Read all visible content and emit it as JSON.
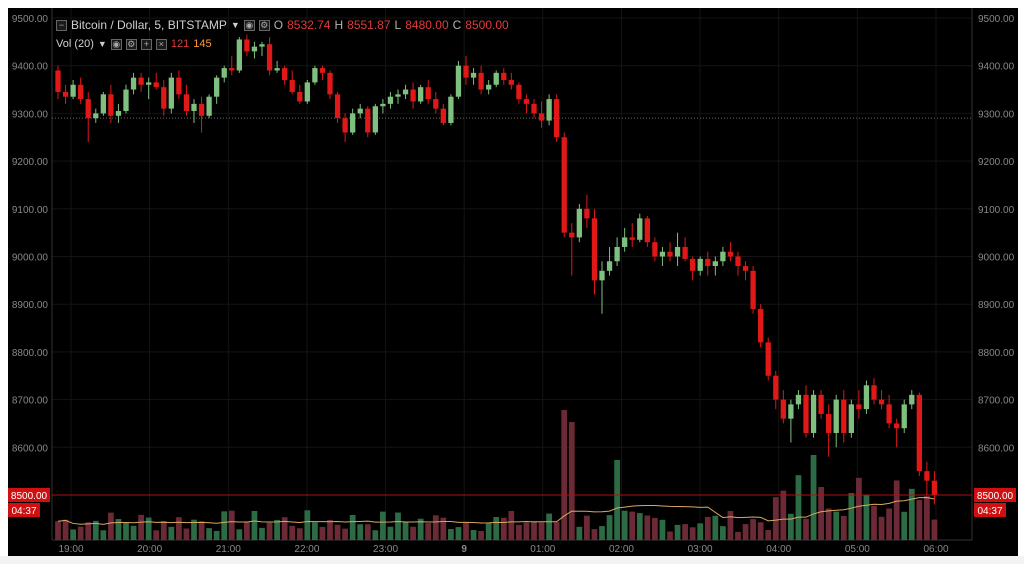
{
  "symbol": {
    "title": "Bitcoin / Dollar, 5, BITSTAMP",
    "open_label": "O",
    "open": "8532.74",
    "high_label": "H",
    "high": "8551.87",
    "low_label": "L",
    "low": "8480.00",
    "close_label": "C",
    "close": "8500.00"
  },
  "volume_legend": {
    "label": "Vol (20)",
    "value1": "121",
    "value2": "145"
  },
  "price_marker": {
    "price": "8500.00",
    "countdown": "04:37"
  },
  "colors": {
    "up": "#7fbf7f",
    "down": "#e01818",
    "vol_up": "#2d6b45",
    "vol_down": "#6b2a35",
    "ma": "#d9a860",
    "grid": "#141414",
    "axis_text": "#888888"
  },
  "chart_data": {
    "type": "candlestick",
    "title": "Bitcoin / Dollar, 5, BITSTAMP",
    "y_ticks": [
      9500,
      9400,
      9300,
      9200,
      9100,
      9000,
      8900,
      8800,
      8700,
      8600,
      8500
    ],
    "ylim": [
      8350,
      9500
    ],
    "x_ticks": [
      "19:00",
      "20:00",
      "21:00",
      "22:00",
      "23:00",
      "9",
      "01:00",
      "02:00",
      "03:00",
      "04:00",
      "05:00",
      "06:00"
    ],
    "reference_line": 9290,
    "current_price": 8500,
    "candles": [
      [
        9390,
        9400,
        9330,
        9345
      ],
      [
        9345,
        9360,
        9320,
        9335
      ],
      [
        9335,
        9370,
        9330,
        9360
      ],
      [
        9360,
        9375,
        9320,
        9330
      ],
      [
        9330,
        9345,
        9240,
        9290
      ],
      [
        9290,
        9310,
        9280,
        9300
      ],
      [
        9300,
        9345,
        9295,
        9340
      ],
      [
        9340,
        9360,
        9280,
        9295
      ],
      [
        9295,
        9320,
        9280,
        9305
      ],
      [
        9305,
        9360,
        9300,
        9350
      ],
      [
        9350,
        9385,
        9340,
        9375
      ],
      [
        9375,
        9385,
        9345,
        9360
      ],
      [
        9360,
        9375,
        9330,
        9365
      ],
      [
        9365,
        9385,
        9350,
        9355
      ],
      [
        9355,
        9370,
        9295,
        9310
      ],
      [
        9310,
        9385,
        9300,
        9375
      ],
      [
        9375,
        9390,
        9330,
        9340
      ],
      [
        9340,
        9360,
        9295,
        9305
      ],
      [
        9305,
        9330,
        9280,
        9320
      ],
      [
        9320,
        9335,
        9260,
        9295
      ],
      [
        9295,
        9340,
        9290,
        9335
      ],
      [
        9335,
        9380,
        9320,
        9375
      ],
      [
        9375,
        9400,
        9365,
        9395
      ],
      [
        9395,
        9420,
        9380,
        9390
      ],
      [
        9390,
        9460,
        9385,
        9455
      ],
      [
        9455,
        9465,
        9420,
        9430
      ],
      [
        9430,
        9450,
        9415,
        9440
      ],
      [
        9440,
        9450,
        9420,
        9445
      ],
      [
        9445,
        9460,
        9380,
        9390
      ],
      [
        9390,
        9410,
        9385,
        9395
      ],
      [
        9395,
        9400,
        9360,
        9370
      ],
      [
        9370,
        9390,
        9340,
        9345
      ],
      [
        9345,
        9360,
        9320,
        9325
      ],
      [
        9325,
        9370,
        9320,
        9365
      ],
      [
        9365,
        9400,
        9360,
        9395
      ],
      [
        9395,
        9400,
        9370,
        9385
      ],
      [
        9385,
        9390,
        9330,
        9340
      ],
      [
        9340,
        9345,
        9280,
        9290
      ],
      [
        9290,
        9300,
        9240,
        9260
      ],
      [
        9260,
        9310,
        9255,
        9300
      ],
      [
        9300,
        9320,
        9290,
        9310
      ],
      [
        9310,
        9315,
        9250,
        9260
      ],
      [
        9260,
        9320,
        9255,
        9315
      ],
      [
        9315,
        9330,
        9300,
        9320
      ],
      [
        9320,
        9345,
        9310,
        9335
      ],
      [
        9335,
        9350,
        9320,
        9340
      ],
      [
        9340,
        9360,
        9330,
        9350
      ],
      [
        9350,
        9365,
        9310,
        9325
      ],
      [
        9325,
        9360,
        9320,
        9355
      ],
      [
        9355,
        9370,
        9320,
        9330
      ],
      [
        9330,
        9345,
        9300,
        9310
      ],
      [
        9310,
        9320,
        9275,
        9280
      ],
      [
        9280,
        9340,
        9275,
        9335
      ],
      [
        9335,
        9410,
        9330,
        9400
      ],
      [
        9400,
        9420,
        9360,
        9375
      ],
      [
        9375,
        9395,
        9360,
        9385
      ],
      [
        9385,
        9400,
        9340,
        9350
      ],
      [
        9350,
        9370,
        9340,
        9360
      ],
      [
        9360,
        9390,
        9355,
        9385
      ],
      [
        9385,
        9395,
        9360,
        9370
      ],
      [
        9370,
        9385,
        9350,
        9360
      ],
      [
        9360,
        9365,
        9320,
        9330
      ],
      [
        9330,
        9340,
        9300,
        9320
      ],
      [
        9320,
        9330,
        9290,
        9300
      ],
      [
        9300,
        9325,
        9270,
        9285
      ],
      [
        9285,
        9340,
        9275,
        9330
      ],
      [
        9330,
        9340,
        9240,
        9250
      ],
      [
        9250,
        9260,
        9040,
        9050
      ],
      [
        9050,
        9070,
        8960,
        9040
      ],
      [
        9040,
        9110,
        9030,
        9100
      ],
      [
        9100,
        9130,
        9060,
        9080
      ],
      [
        9080,
        9100,
        8920,
        8950
      ],
      [
        8950,
        8990,
        8880,
        8970
      ],
      [
        8970,
        9020,
        8960,
        8990
      ],
      [
        8990,
        9040,
        8980,
        9020
      ],
      [
        9020,
        9060,
        9010,
        9040
      ],
      [
        9040,
        9070,
        9020,
        9035
      ],
      [
        9035,
        9090,
        9030,
        9080
      ],
      [
        9080,
        9085,
        9020,
        9030
      ],
      [
        9030,
        9040,
        8990,
        9000
      ],
      [
        9000,
        9020,
        8980,
        9010
      ],
      [
        9010,
        9030,
        8990,
        9000
      ],
      [
        9000,
        9050,
        8980,
        9020
      ],
      [
        9020,
        9040,
        8990,
        8995
      ],
      [
        8995,
        9000,
        8950,
        8970
      ],
      [
        8970,
        9000,
        8960,
        8995
      ],
      [
        8995,
        9010,
        8960,
        8980
      ],
      [
        8980,
        9000,
        8960,
        8990
      ],
      [
        8990,
        9020,
        8980,
        9010
      ],
      [
        9010,
        9030,
        8990,
        9000
      ],
      [
        9000,
        9010,
        8960,
        8980
      ],
      [
        8980,
        8990,
        8950,
        8970
      ],
      [
        8970,
        8980,
        8880,
        8890
      ],
      [
        8890,
        8900,
        8810,
        8820
      ],
      [
        8820,
        8830,
        8740,
        8750
      ],
      [
        8750,
        8760,
        8680,
        8700
      ],
      [
        8700,
        8720,
        8650,
        8660
      ],
      [
        8660,
        8700,
        8610,
        8690
      ],
      [
        8690,
        8720,
        8680,
        8710
      ],
      [
        8710,
        8730,
        8620,
        8630
      ],
      [
        8630,
        8720,
        8620,
        8710
      ],
      [
        8710,
        8720,
        8660,
        8670
      ],
      [
        8670,
        8690,
        8580,
        8630
      ],
      [
        8630,
        8710,
        8600,
        8700
      ],
      [
        8700,
        8720,
        8610,
        8630
      ],
      [
        8630,
        8700,
        8620,
        8690
      ],
      [
        8690,
        8720,
        8660,
        8680
      ],
      [
        8680,
        8740,
        8670,
        8730
      ],
      [
        8730,
        8745,
        8690,
        8700
      ],
      [
        8700,
        8720,
        8680,
        8690
      ],
      [
        8690,
        8710,
        8640,
        8650
      ],
      [
        8650,
        8660,
        8600,
        8640
      ],
      [
        8640,
        8700,
        8630,
        8690
      ],
      [
        8690,
        8720,
        8680,
        8710
      ],
      [
        8710,
        8715,
        8540,
        8550
      ],
      [
        8550,
        8570,
        8500,
        8530
      ],
      [
        8530,
        8550,
        8480,
        8500
      ]
    ],
    "volume_ma_label": "Vol (20)"
  }
}
